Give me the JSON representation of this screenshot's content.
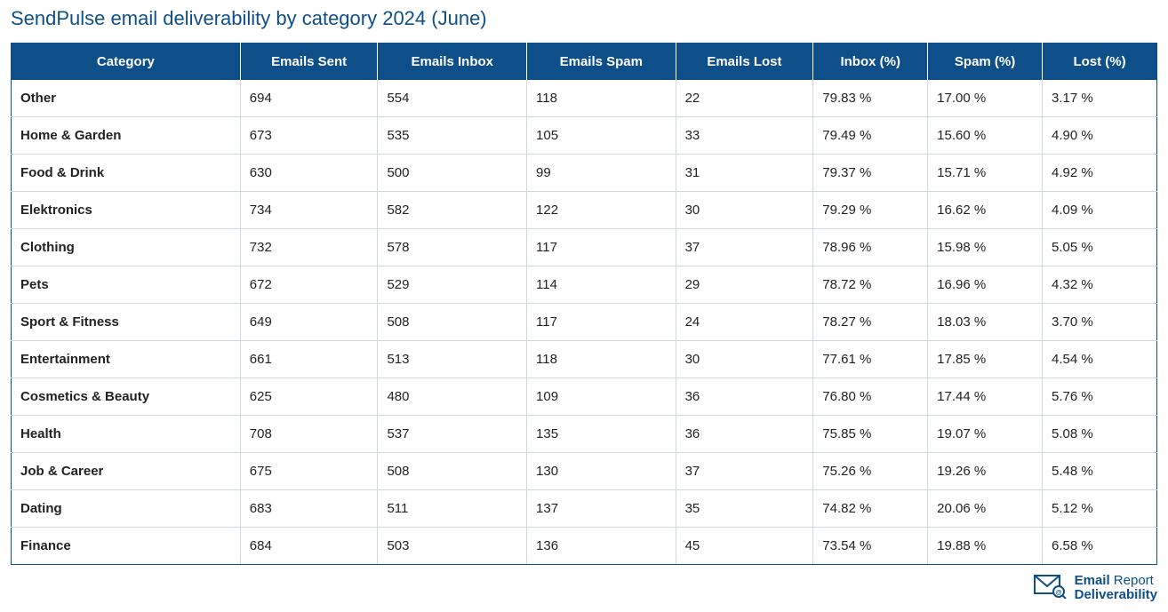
{
  "title": "SendPulse email deliverability by category 2024 (June)",
  "table": {
    "columns": [
      "Category",
      "Emails Sent",
      "Emails Inbox",
      "Emails Spam",
      "Emails Lost",
      "Inbox (%)",
      "Spam (%)",
      "Lost (%)"
    ],
    "rows": [
      [
        "Other",
        "694",
        "554",
        "118",
        "22",
        "79.83 %",
        "17.00 %",
        "3.17 %"
      ],
      [
        "Home & Garden",
        "673",
        "535",
        "105",
        "33",
        "79.49 %",
        "15.60 %",
        "4.90 %"
      ],
      [
        "Food & Drink",
        "630",
        "500",
        "99",
        "31",
        "79.37 %",
        "15.71 %",
        "4.92 %"
      ],
      [
        "Elektronics",
        "734",
        "582",
        "122",
        "30",
        "79.29 %",
        "16.62 %",
        "4.09 %"
      ],
      [
        "Clothing",
        "732",
        "578",
        "117",
        "37",
        "78.96 %",
        "15.98 %",
        "5.05 %"
      ],
      [
        "Pets",
        "672",
        "529",
        "114",
        "29",
        "78.72 %",
        "16.96 %",
        "4.32 %"
      ],
      [
        "Sport & Fitness",
        "649",
        "508",
        "117",
        "24",
        "78.27 %",
        "18.03 %",
        "3.70 %"
      ],
      [
        "Entertainment",
        "661",
        "513",
        "118",
        "30",
        "77.61 %",
        "17.85 %",
        "4.54 %"
      ],
      [
        "Cosmetics & Beauty",
        "625",
        "480",
        "109",
        "36",
        "76.80 %",
        "17.44 %",
        "5.76 %"
      ],
      [
        "Health",
        "708",
        "537",
        "135",
        "36",
        "75.85 %",
        "19.07 %",
        "5.08 %"
      ],
      [
        "Job & Career",
        "675",
        "508",
        "130",
        "37",
        "75.26 %",
        "19.26 %",
        "5.48 %"
      ],
      [
        "Dating",
        "683",
        "511",
        "137",
        "35",
        "74.82 %",
        "20.06 %",
        "5.12 %"
      ],
      [
        "Finance",
        "684",
        "503",
        "136",
        "45",
        "73.54 %",
        "19.88 %",
        "6.58 %"
      ]
    ],
    "header_bg": "#0e4f8a",
    "header_fg": "#ffffff",
    "border_color": "#0e4f8a",
    "row_border_color": "#cfd8e0",
    "body_fg": "#222222",
    "title_color": "#0e4f8a",
    "bg": "#ffffff",
    "header_fontsize": 15,
    "body_fontsize": 15,
    "title_fontsize": 22,
    "col_widths_pct": [
      20,
      12,
      13,
      13,
      12,
      10,
      10,
      10
    ]
  },
  "logo": {
    "line1a": "Email",
    "line1b": " Report",
    "line2": "Deliverability",
    "color": "#0e4f8a"
  }
}
